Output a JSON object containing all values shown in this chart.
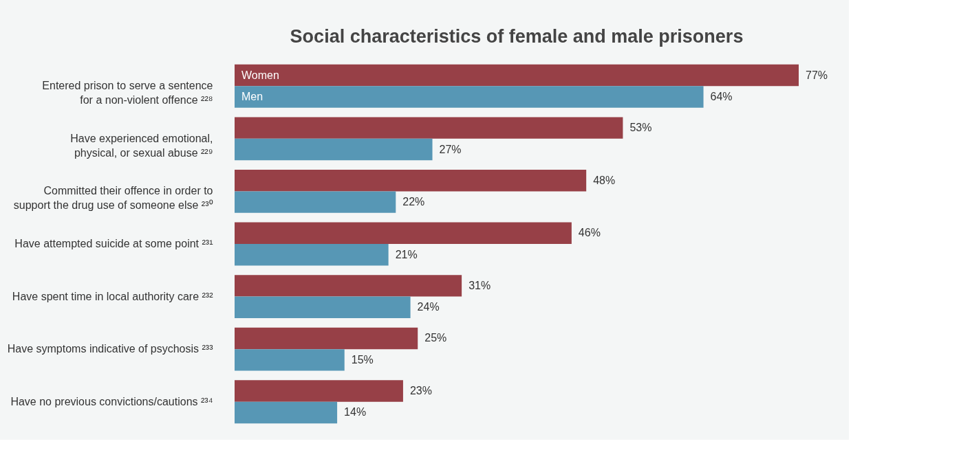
{
  "chart_data": {
    "type": "bar",
    "orientation": "horizontal",
    "title": "Social characteristics of female and male prisoners",
    "categories": [
      "Entered prison to serve a sentence for a non-violent offence ²²⁸",
      "Have experienced emotional, physical, or sexual abuse ²²⁹",
      "Committed their offence in order to support the drug use of someone else ²³⁰",
      "Have attempted suicide at some point ²³¹",
      "Have spent time in local authority care ²³²",
      "Have symptoms indicative of psychosis ²³³",
      "Have no previous convictions/cautions ²³⁴"
    ],
    "series": [
      {
        "name": "Women",
        "color": "#974047",
        "values": [
          77,
          53,
          48,
          46,
          31,
          25,
          23
        ],
        "value_labels": [
          "77%",
          "53%",
          "48%",
          "46%",
          "31%",
          "25%",
          "23%"
        ]
      },
      {
        "name": "Men",
        "color": "#5797b5",
        "values": [
          64,
          27,
          22,
          21,
          24,
          15,
          14
        ],
        "value_labels": [
          "64%",
          "27%",
          "22%",
          "21%",
          "24%",
          "15%",
          "14%"
        ]
      }
    ],
    "grid": false,
    "legend": false
  }
}
